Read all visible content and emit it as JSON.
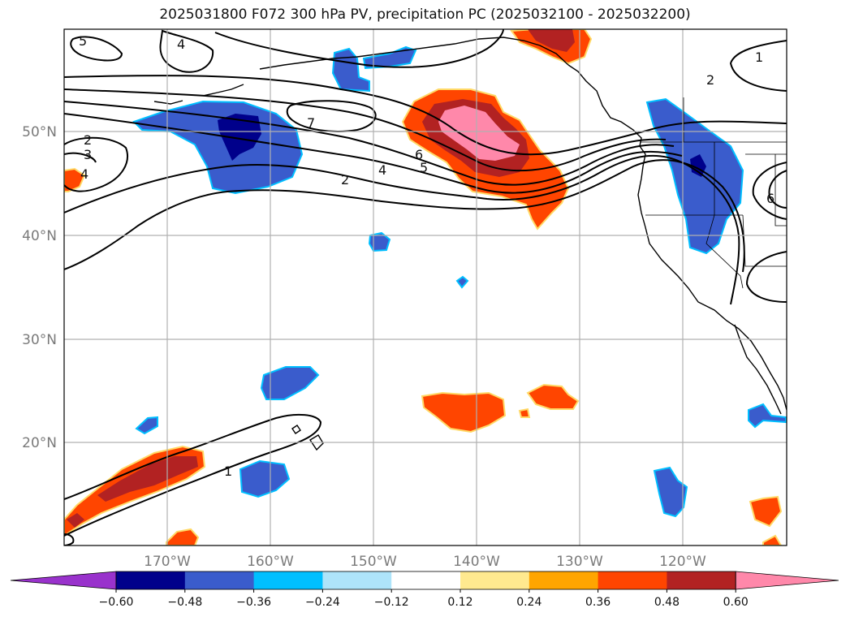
{
  "title": "2025031800 F072 300 hPa PV, precipitation PC (2025032100 - 2025032200)",
  "map": {
    "lon_ticks": [
      "170°W",
      "160°W",
      "150°W",
      "140°W",
      "130°W",
      "120°W"
    ],
    "lat_ticks": [
      "50°N",
      "40°N",
      "30°N",
      "20°N"
    ],
    "contour_labels": [
      "5",
      "4",
      "1",
      "2",
      "7",
      "2",
      "3",
      "4",
      "6",
      "4",
      "5",
      "2",
      "6",
      "1"
    ]
  },
  "colorbar": {
    "ticks": [
      "−0.60",
      "−0.48",
      "−0.36",
      "−0.24",
      "−0.12",
      "0.12",
      "0.24",
      "0.36",
      "0.48",
      "0.60"
    ],
    "colors": [
      "#9932cc",
      "#00008b",
      "#3a5ccc",
      "#00bfff",
      "#aee4fa",
      "#ffffff",
      "#ffe98f",
      "#ffa500",
      "#ff4500",
      "#b22222",
      "#ff88aa"
    ]
  },
  "colors": {
    "land_outline": "#000000",
    "grid": "#b0b0b0",
    "contour": "#000000"
  }
}
